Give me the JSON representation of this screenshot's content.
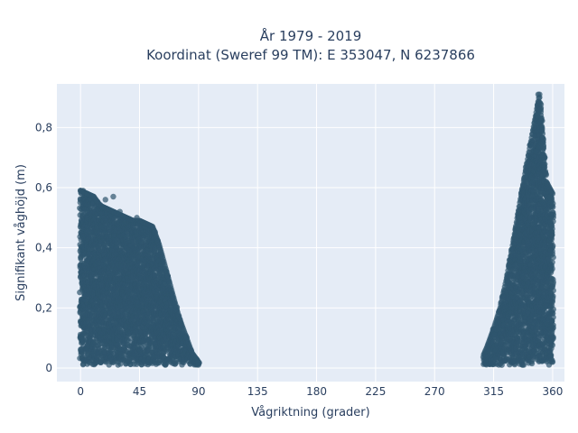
{
  "chart_data": {
    "type": "scatter",
    "title_line1": "År 1979 - 2019",
    "title_line2": "Koordinat (Sweref 99 TM): E 353047, N 6237866",
    "xlabel": "Vågriktning (grader)",
    "ylabel": "Signifikant våghöjd (m)",
    "xlim": [
      -18,
      369
    ],
    "ylim": [
      -0.045,
      0.945
    ],
    "x_ticks": [
      0,
      45,
      90,
      135,
      180,
      225,
      270,
      315,
      360
    ],
    "x_tick_labels": [
      "0",
      "45",
      "90",
      "135",
      "180",
      "225",
      "270",
      "315",
      "360"
    ],
    "y_ticks": [
      0,
      0.2,
      0.4,
      0.6,
      0.8
    ],
    "y_tick_labels": [
      "0",
      "0,2",
      "0,4",
      "0,6",
      "0,8"
    ],
    "grid": true,
    "colors": {
      "plot_bg": "#e5ecf6",
      "grid": "#ffffff",
      "marker": "#2f566d",
      "text": "#2a3f5f"
    },
    "envelope_upper": [
      [
        0,
        0.59
      ],
      [
        5,
        0.58
      ],
      [
        10,
        0.57
      ],
      [
        15,
        0.54
      ],
      [
        20,
        0.53
      ],
      [
        25,
        0.52
      ],
      [
        30,
        0.51
      ],
      [
        35,
        0.5
      ],
      [
        40,
        0.49
      ],
      [
        45,
        0.49
      ],
      [
        50,
        0.48
      ],
      [
        55,
        0.47
      ],
      [
        60,
        0.41
      ],
      [
        65,
        0.33
      ],
      [
        70,
        0.25
      ],
      [
        75,
        0.17
      ],
      [
        80,
        0.11
      ],
      [
        85,
        0.05
      ],
      [
        90,
        0.02
      ],
      [
        307,
        0.04
      ],
      [
        310,
        0.07
      ],
      [
        315,
        0.13
      ],
      [
        320,
        0.2
      ],
      [
        325,
        0.3
      ],
      [
        330,
        0.42
      ],
      [
        335,
        0.55
      ],
      [
        340,
        0.67
      ],
      [
        345,
        0.79
      ],
      [
        350,
        0.91
      ],
      [
        355,
        0.62
      ],
      [
        360,
        0.58
      ]
    ],
    "outlier_points": [
      [
        0,
        0.59
      ],
      [
        2,
        0.59
      ],
      [
        5,
        0.58
      ],
      [
        10,
        0.57
      ],
      [
        19,
        0.56
      ],
      [
        25,
        0.57
      ],
      [
        30,
        0.52
      ],
      [
        43,
        0.5
      ],
      [
        349,
        0.91
      ],
      [
        350,
        0.9
      ],
      [
        348,
        0.84
      ],
      [
        351,
        0.86
      ],
      [
        352,
        0.8
      ],
      [
        346,
        0.8
      ],
      [
        353,
        0.76
      ],
      [
        347,
        0.72
      ],
      [
        354,
        0.7
      ],
      [
        340,
        0.62
      ]
    ]
  }
}
